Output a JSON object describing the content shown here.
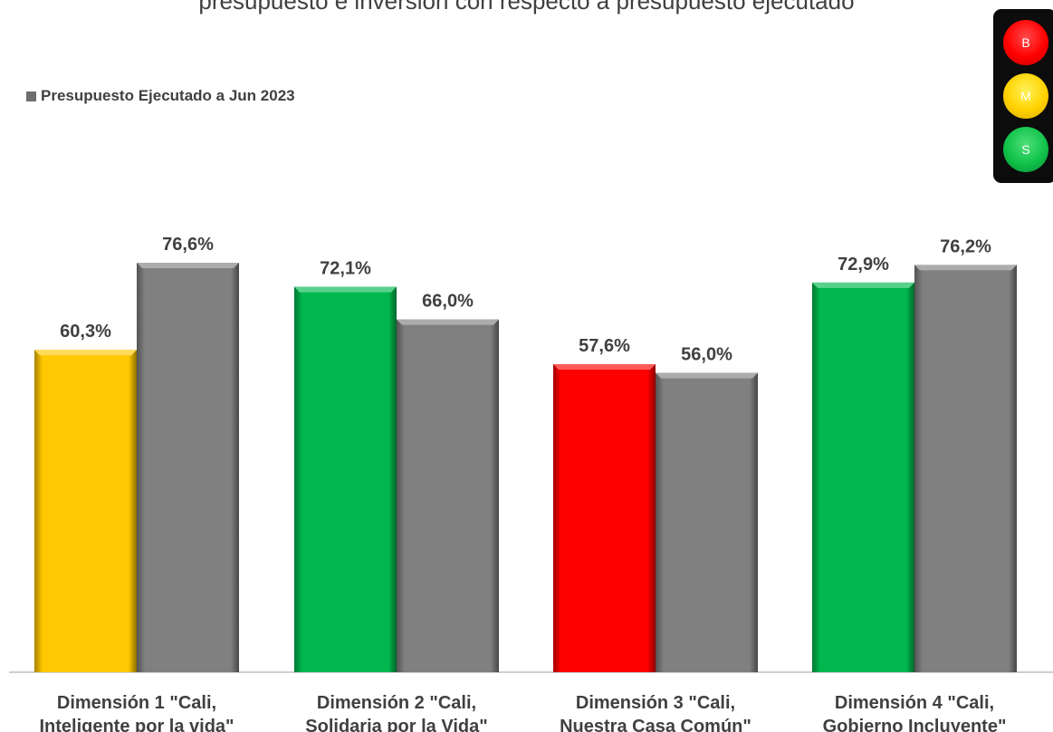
{
  "header": {
    "text": "presupuesto e inversión con respecto a presupuesto ejecutado"
  },
  "legend": {
    "label": "Presupuesto Ejecutado a Jun 2023",
    "color": "#6f6f6f"
  },
  "traffic_light": {
    "lamps": [
      {
        "letter": "B",
        "color": "#ff0000"
      },
      {
        "letter": "M",
        "color": "#ffd200"
      },
      {
        "letter": "S",
        "color": "#10c24a"
      }
    ]
  },
  "chart_data": {
    "type": "bar",
    "categories": [
      [
        "Dimensión 1 \"Cali,",
        "Inteligente por la vida\""
      ],
      [
        "Dimensión 2 \"Cali,",
        "Solidaria por la Vida\""
      ],
      [
        "Dimensión 3 \"Cali,",
        "Nuestra Casa Común\""
      ],
      [
        "Dimensión 4 \"Cali,",
        "Gobierno Incluyente\""
      ]
    ],
    "series": [
      {
        "values": [
          60.3,
          72.1,
          57.6,
          72.9
        ],
        "labels": [
          "60,3%",
          "72,1%",
          "57,6%",
          "72,9%"
        ],
        "colors": [
          "#ffc800",
          "#00b84f",
          "#ff0000",
          "#00b84f"
        ]
      },
      {
        "name": "Presupuesto Ejecutado a Jun 2023",
        "values": [
          76.6,
          66.0,
          56.0,
          76.2
        ],
        "labels": [
          "76,6%",
          "66,0%",
          "56,0%",
          "76,2%"
        ],
        "colors": [
          "#808080",
          "#808080",
          "#808080",
          "#808080"
        ]
      }
    ],
    "ylim": [
      0,
      100
    ],
    "grid": false,
    "legend_position": "top-left"
  }
}
